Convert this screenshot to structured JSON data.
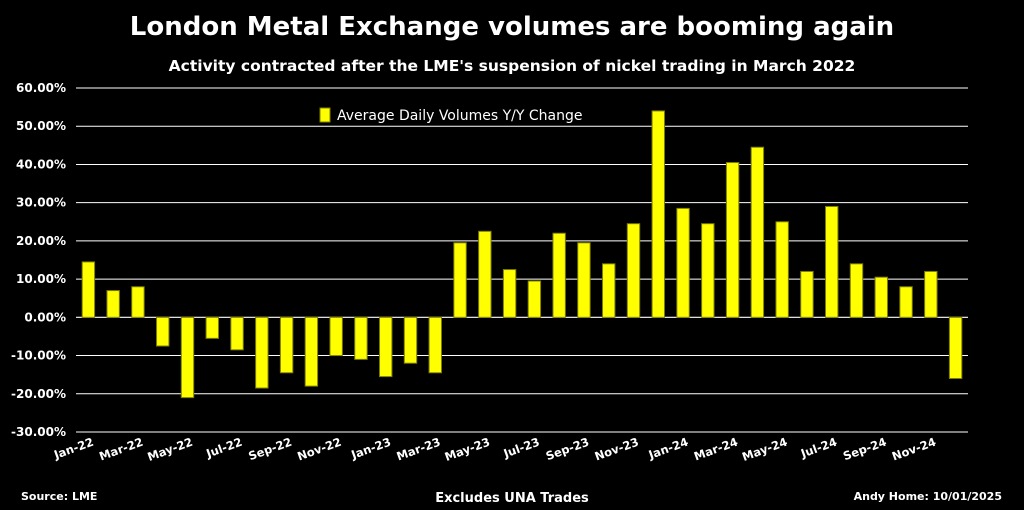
{
  "title": "London Metal Exchange volumes are booming again",
  "subtitle": "Activity contracted after the LME's suspension of nickel trading in March 2022",
  "footer": {
    "source": "Source: LME",
    "note": "Excludes UNA Trades",
    "credit": "Andy Home: 10/01/2025"
  },
  "colors": {
    "bar_fill": "#FFFF00",
    "bar_stroke": "#808000",
    "background": "#000000",
    "grid": "#FFFFFF"
  },
  "chart_data": {
    "type": "bar",
    "categories": [
      "Jan-22",
      "Feb-22",
      "Mar-22",
      "Apr-22",
      "May-22",
      "Jun-22",
      "Jul-22",
      "Aug-22",
      "Sep-22",
      "Oct-22",
      "Nov-22",
      "Dec-22",
      "Jan-23",
      "Feb-23",
      "Mar-23",
      "Apr-23",
      "May-23",
      "Jun-23",
      "Jul-23",
      "Aug-23",
      "Sep-23",
      "Oct-23",
      "Nov-23",
      "Dec-23",
      "Jan-24",
      "Feb-24",
      "Mar-24",
      "Apr-24",
      "May-24",
      "Jun-24",
      "Jul-24",
      "Aug-24",
      "Sep-24",
      "Oct-24",
      "Nov-24",
      "Dec-24"
    ],
    "x_tick_labels": [
      "Jan-22",
      "Mar-22",
      "May-22",
      "Jul-22",
      "Sep-22",
      "Nov-22",
      "Jan-23",
      "Mar-23",
      "May-23",
      "Jul-23",
      "Sep-23",
      "Nov-23",
      "Jan-24",
      "Mar-24",
      "May-24",
      "Jul-24",
      "Sep-24",
      "Nov-24"
    ],
    "series": [
      {
        "name": "Average Daily Volumes Y/Y Change",
        "values": [
          14.5,
          7.0,
          8.0,
          -7.5,
          -21.0,
          -5.5,
          -8.5,
          -18.5,
          -14.5,
          -18.0,
          -10.0,
          -11.0,
          -15.5,
          -12.0,
          -14.5,
          19.5,
          22.5,
          12.5,
          9.5,
          22.0,
          19.5,
          14.0,
          24.5,
          54.0,
          28.5,
          24.5,
          40.5,
          44.5,
          25.0,
          12.0,
          29.0,
          14.0,
          10.5,
          8.0,
          12.0,
          -16.0
        ]
      }
    ],
    "ylim": [
      -30,
      60
    ],
    "yticks": [
      -30,
      -20,
      -10,
      0,
      10,
      20,
      30,
      40,
      50,
      60
    ],
    "y_tick_labels": [
      "-30.00%",
      "-20.00%",
      "-10.00%",
      "0.00%",
      "10.00%",
      "20.00%",
      "30.00%",
      "40.00%",
      "50.00%",
      "60.00%"
    ],
    "grid": true,
    "legend_position": "top-center"
  }
}
